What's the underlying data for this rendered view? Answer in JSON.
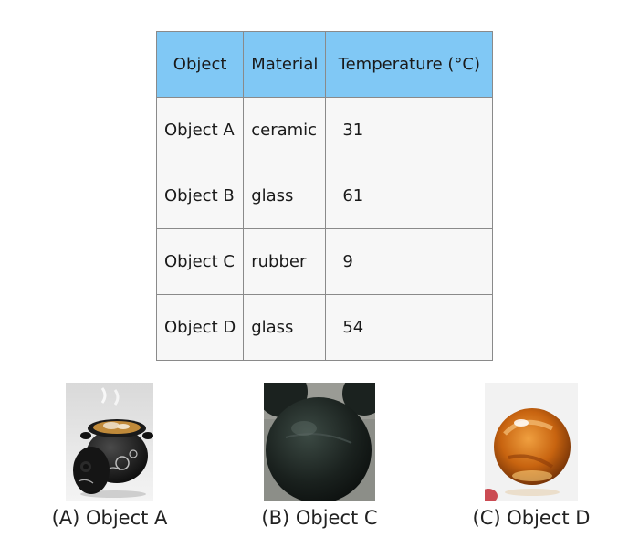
{
  "table": {
    "headers": [
      "Object",
      "Material",
      "Temperature (°C)"
    ],
    "rows": [
      {
        "object": "Object A",
        "material": "ceramic",
        "temperature": "31"
      },
      {
        "object": "Object B",
        "material": "glass",
        "temperature": "61"
      },
      {
        "object": "Object C",
        "material": "rubber",
        "temperature": "9"
      },
      {
        "object": "Object D",
        "material": "glass",
        "temperature": "54"
      }
    ]
  },
  "options": [
    {
      "caption": "(A) Object A",
      "icon": "ceramic-pot-icon"
    },
    {
      "caption": "(B) Object C",
      "icon": "rubber-ball-icon"
    },
    {
      "caption": "(C) Object D",
      "icon": "glass-marble-icon"
    }
  ],
  "colors": {
    "header_bg": "#80c8f5",
    "cell_bg": "#f7f7f7",
    "border": "#8a8a8a"
  }
}
